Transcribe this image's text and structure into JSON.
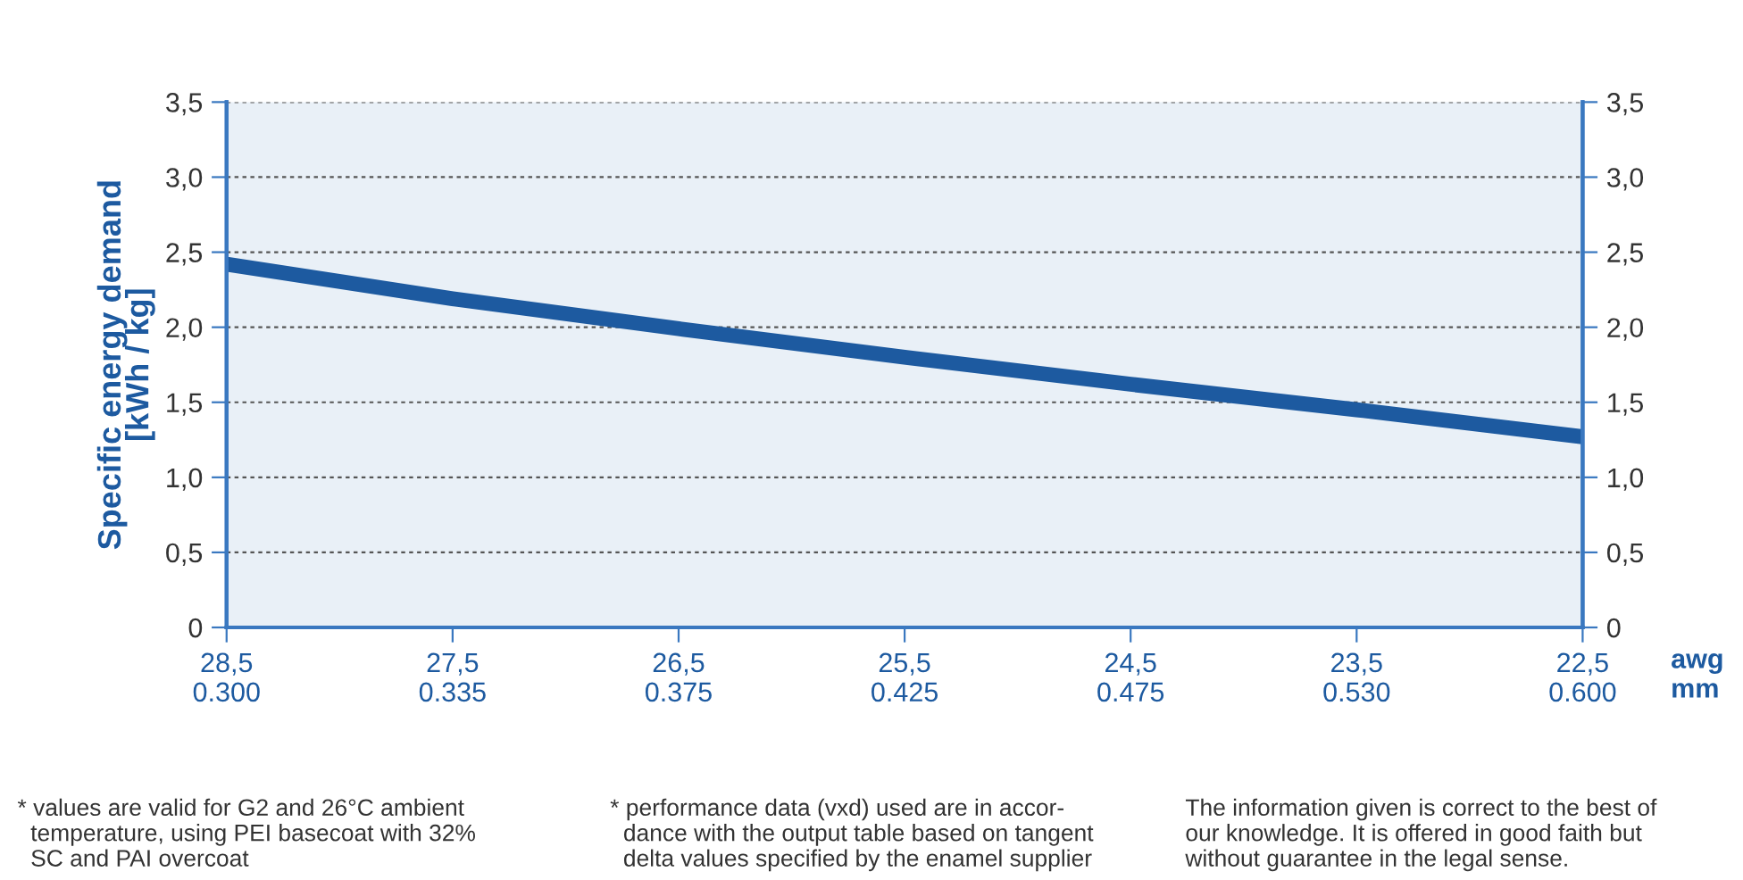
{
  "chart_data": {
    "type": "line",
    "categories": [
      "28,5\n0.300",
      "27,5\n0.335",
      "26,5\n0.375",
      "25,5\n0.425",
      "24,5\n0.475",
      "23,5\n0.530",
      "22,5\n0.600"
    ],
    "xlabel": "awg\nmm",
    "ylabel": "Specific energy demand\n[kWh / kg]",
    "series": [
      {
        "color": "#1d5aa0",
        "values": [
          2.42,
          2.19,
          1.99,
          1.8,
          1.62,
          1.45,
          1.27
        ]
      }
    ],
    "ylim": [
      0,
      3.5
    ],
    "yticks": [
      0,
      {
        "value": 0.5,
        "label": "0,5"
      },
      {
        "value": 1.0,
        "label": "1,0"
      },
      {
        "value": 1.5,
        "label": "1,5"
      },
      {
        "value": 2.0,
        "label": "2,0"
      },
      {
        "value": 2.5,
        "label": "2,5"
      },
      {
        "value": 3.0,
        "label": "3,0"
      },
      {
        "value": 3.5,
        "label": "3,5"
      }
    ],
    "y2lim": [
      0,
      3.5
    ],
    "y2ticks": [
      0,
      {
        "value": 0.5,
        "label": "0,5"
      },
      {
        "value": 1.0,
        "label": "1,0"
      },
      {
        "value": 1.5,
        "label": "1,5"
      },
      {
        "value": 2.0,
        "label": "2,0"
      },
      {
        "value": 2.5,
        "label": "2,5"
      },
      {
        "value": 3.0,
        "label": "3,0"
      },
      {
        "value": 3.5,
        "label": "3,5"
      }
    ],
    "grid": "y",
    "line_style": "solid",
    "marker": "none",
    "legend": false,
    "annotations": [
      "* values are valid for G2 and 26°C ambient\n  temperature, using PEI basecoat with 32%\n  SC and PAI overcoat",
      "* performance data (vxd) used are in accor-\n  dance with the output table based on tangent\n  delta values specified by the enamel supplier",
      "The information given is correct to the best of\nour knowledge. It is offered in good faith but\nwithout guarantee in the legal sense."
    ]
  }
}
